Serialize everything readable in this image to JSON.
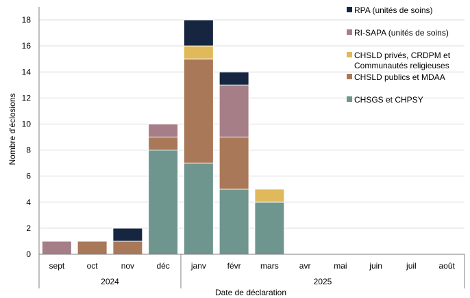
{
  "chart_data": {
    "type": "bar",
    "stacked": true,
    "ylabel": "Nombre d'éclosions",
    "xlabel": "Date de déclaration",
    "ylim": [
      0,
      19
    ],
    "yticks": [
      0,
      2,
      4,
      6,
      8,
      10,
      12,
      14,
      16,
      18
    ],
    "grid": true,
    "legend_position": "right",
    "categories": [
      "sept",
      "oct",
      "nov",
      "déc",
      "janv",
      "févr",
      "mars",
      "avr",
      "mai",
      "juin",
      "juil",
      "août"
    ],
    "year_groups": [
      {
        "label": "2024",
        "from": 0,
        "to": 3
      },
      {
        "label": "2025",
        "from": 4,
        "to": 11
      }
    ],
    "series": [
      {
        "name": "CHSGS et CHPSY",
        "color": "#6e968f",
        "values": [
          0,
          0,
          0,
          8,
          7,
          5,
          4,
          0,
          0,
          0,
          0,
          0
        ]
      },
      {
        "name": "CHSLD publics et MDAA",
        "color": "#a97858",
        "values": [
          0,
          1,
          1,
          1,
          8,
          4,
          0,
          0,
          0,
          0,
          0,
          0
        ]
      },
      {
        "name": "CHSLD privés, CRDPM et Communautés religieuses",
        "color": "#e0b95a",
        "values": [
          0,
          0,
          0,
          0,
          1,
          0,
          1,
          0,
          0,
          0,
          0,
          0
        ]
      },
      {
        "name": "RI-SAPA (unités de soins)",
        "color": "#a67e87",
        "values": [
          1,
          0,
          0,
          1,
          0,
          4,
          0,
          0,
          0,
          0,
          0,
          0
        ]
      },
      {
        "name": "RPA (unités de soins)",
        "color": "#162640",
        "values": [
          0,
          0,
          1,
          0,
          2,
          1,
          0,
          0,
          0,
          0,
          0,
          0
        ]
      }
    ],
    "legend": [
      {
        "series": 4,
        "lines": [
          "RPA (unités de soins)"
        ]
      },
      {
        "series": 3,
        "lines": [
          "RI-SAPA (unités de soins)"
        ]
      },
      {
        "series": 2,
        "lines": [
          "CHSLD privés, CRDPM et",
          "Communautés religieuses"
        ]
      },
      {
        "series": 1,
        "lines": [
          "CHSLD publics et MDAA"
        ]
      },
      {
        "series": 0,
        "lines": [
          "CHSGS et CHPSY"
        ]
      }
    ]
  }
}
